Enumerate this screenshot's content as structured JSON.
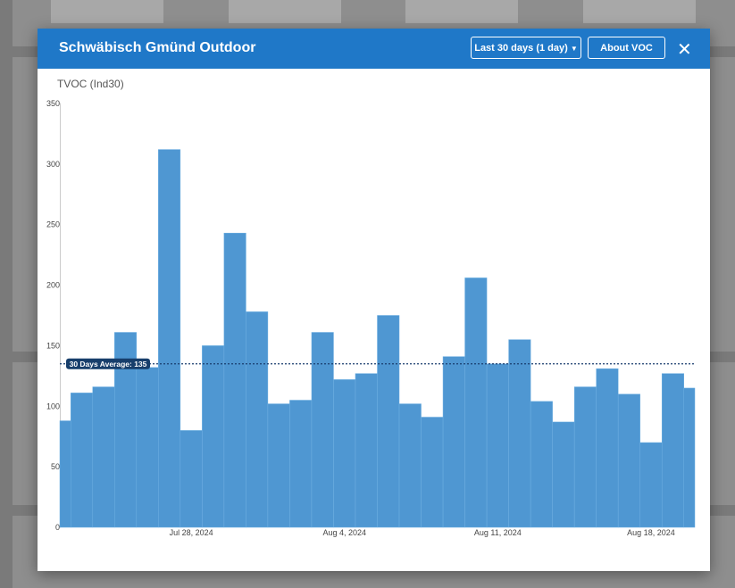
{
  "modal": {
    "title": "Schwäbisch Gmünd Outdoor",
    "range_select": "Last 30 days (1 day)",
    "about_button": "About VOC"
  },
  "chart_data": {
    "type": "bar",
    "y_label": "TVOC (Ind30)",
    "categories": [
      null,
      null,
      null,
      null,
      null,
      null,
      "Jul 28, 2024",
      null,
      null,
      null,
      null,
      null,
      null,
      "Aug 4, 2024",
      null,
      null,
      null,
      null,
      null,
      null,
      "Aug 11, 2024",
      null,
      null,
      null,
      null,
      null,
      null,
      "Aug 18, 2024",
      null,
      null
    ],
    "values": [
      88,
      111,
      116,
      161,
      132,
      312,
      80,
      150,
      243,
      178,
      102,
      105,
      161,
      122,
      127,
      175,
      102,
      91,
      141,
      206,
      135,
      155,
      104,
      87,
      116,
      131,
      110,
      70,
      127,
      115
    ],
    "color": "#4f97d2",
    "ylim": [
      0,
      350
    ],
    "yticks": [
      0,
      50,
      100,
      150,
      200,
      250,
      300,
      350
    ],
    "average": {
      "value": 135,
      "label": "30 Days Average: 135"
    }
  }
}
